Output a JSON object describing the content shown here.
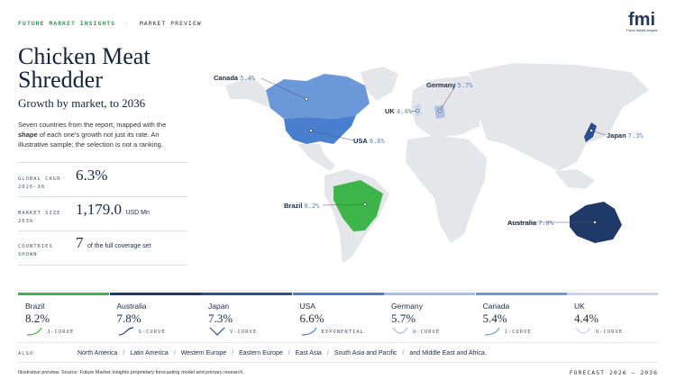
{
  "header": {
    "brand": "FUTURE MARKET INSIGHTS",
    "separator": "·",
    "section": "MARKET PREVIEW",
    "logo": "fmi",
    "logo_caption": "Future Market Insights"
  },
  "title": "Chicken Meat Shredder",
  "subtitle": "Growth by market, to 2036",
  "description": [
    "Seven countries from the report, mapped with the ",
    "shape",
    " of each one's growth not just its rate. An illustrative sample; the selection is not a ranking."
  ],
  "stats": [
    {
      "label": "GLOBAL CAGR 2026-36",
      "value": "6.3%"
    },
    {
      "label": "MARKET SIZE 2036",
      "value": "1,179.0",
      "unit": "USD Mn"
    },
    {
      "label": "COUNTRIES SHOWN",
      "value": "7",
      "note": "of the full coverage set"
    }
  ],
  "cards": [
    {
      "name": "Brazil",
      "value": "8.2%",
      "curve": "J-CURVE",
      "color": "#3db54a"
    },
    {
      "name": "Australia",
      "value": "7.8%",
      "curve": "S-CURVE",
      "color": "#1f3a68"
    },
    {
      "name": "Japan",
      "value": "7.3%",
      "curve": "V-CURVE",
      "color": "#2d4f94"
    },
    {
      "name": "USA",
      "value": "6.6%",
      "curve": "EXPONENTIAL",
      "color": "#4a7fd0"
    },
    {
      "name": "Germany",
      "value": "5.7%",
      "curve": "U-CURVE",
      "color": "#a9c0e4"
    },
    {
      "name": "Canada",
      "value": "5.4%",
      "curve": "J-CURVE",
      "color": "#6b98d8"
    },
    {
      "name": "UK",
      "value": "4.4%",
      "curve": "U-CURVE",
      "color": "#c7d5ec"
    }
  ],
  "also": {
    "label": "ALSO",
    "separator": "/",
    "items": [
      "North America",
      "Latin America",
      "Western Europe",
      "Eastern Europe",
      "East Asia",
      "South Asia and Pacific",
      "and Middle East and Africa."
    ]
  },
  "footer": {
    "source": "Illustrative preview. Source: Future Market Insights proprietary forecasting model and primary research.",
    "forecast": "FORECAST 2026 – 2036"
  }
}
